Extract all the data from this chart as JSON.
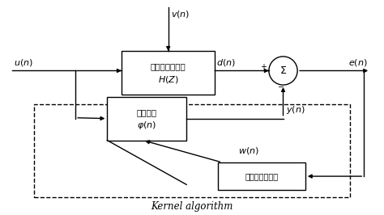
{
  "title": "Kernel algorithm",
  "box1_text1": "未知非线性系统",
  "box1_text2": "$H(Z)$",
  "box2_text1": "核滤波器",
  "box2_text2": "$\\varphi(n)$",
  "box3_text": "自适应滤波算法",
  "label_un": "$u(n)$",
  "label_vn": "$v(n)$",
  "label_dn": "$d(n)$",
  "label_en": "$e(n)$",
  "label_yn": "$y(n)$",
  "label_wn": "$w(n)$",
  "background_color": "#ffffff"
}
